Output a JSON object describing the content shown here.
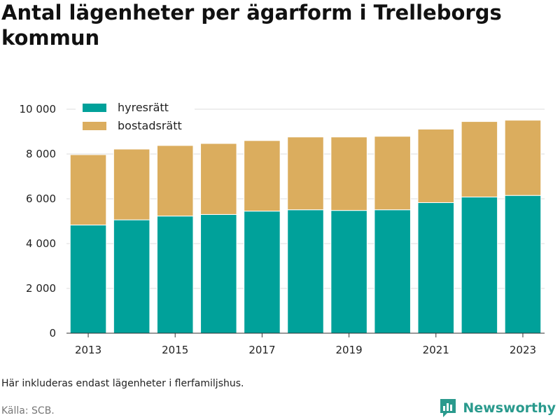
{
  "chart_data": {
    "type": "bar",
    "stacked": true,
    "title": "Antal lägenheter per ägarform i Trelleborgs kommun",
    "categories": [
      "2013",
      "2014",
      "2015",
      "2016",
      "2017",
      "2018",
      "2019",
      "2020",
      "2021",
      "2022",
      "2023"
    ],
    "x_tick_labels": [
      "2013",
      "2015",
      "2017",
      "2019",
      "2021",
      "2023"
    ],
    "series": [
      {
        "name": "hyresrätt",
        "color": "#00a19a",
        "values": [
          4830,
          5060,
          5230,
          5300,
          5450,
          5510,
          5480,
          5510,
          5830,
          6080,
          6150
        ]
      },
      {
        "name": "bostadsrätt",
        "color": "#dbad5e",
        "values": [
          3140,
          3160,
          3150,
          3170,
          3150,
          3250,
          3280,
          3280,
          3280,
          3370,
          3360
        ]
      }
    ],
    "ylim": [
      0,
      10000
    ],
    "y_ticks": [
      0,
      2000,
      4000,
      6000,
      8000,
      10000
    ],
    "y_tick_labels": [
      "0",
      "2 000",
      "4 000",
      "6 000",
      "8 000",
      "10 000"
    ],
    "grid": true,
    "legend": "top-left"
  },
  "note": "Här inkluderas endast lägenheter i flerfamiljshus.",
  "source": "Källa: SCB.",
  "brand": {
    "name": "Newsworthy",
    "icon": "newsworthy-logo-icon",
    "color": "#2a9a8d"
  }
}
